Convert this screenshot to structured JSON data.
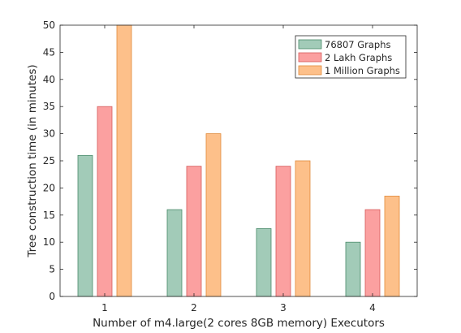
{
  "chart_data": {
    "type": "bar",
    "categories": [
      "1",
      "2",
      "3",
      "4"
    ],
    "series": [
      {
        "name": "76807 Graphs",
        "values": [
          26,
          16,
          12.5,
          10
        ],
        "fill": "#a2cbb8",
        "stroke": "#4a8a6a"
      },
      {
        "name": "2 Lakh Graphs",
        "values": [
          35,
          24,
          24,
          16
        ],
        "fill": "#fba0a0",
        "stroke": "#d65c5c"
      },
      {
        "name": "1 Million Graphs",
        "values": [
          50,
          30,
          25,
          18.5
        ],
        "fill": "#fdc08a",
        "stroke": "#e08a3a"
      }
    ],
    "xlabel": "Number of m4.large(2 cores 8GB memory) Executors",
    "ylabel": "Tree construction time (in minutes)",
    "ylim": [
      0,
      50
    ],
    "yticks": [
      "0",
      "5",
      "10",
      "15",
      "20",
      "25",
      "30",
      "35",
      "40",
      "45",
      "50"
    ],
    "grid": false,
    "legend_position": "top-right"
  }
}
